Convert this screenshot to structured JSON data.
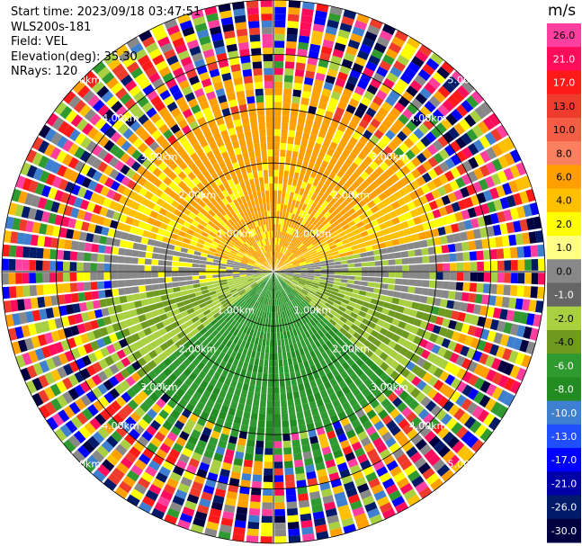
{
  "info": {
    "start_time": "Start time: 2023/09/18 03:47:51",
    "station": "WLS200s-181",
    "field": "Field: VEL",
    "elevation": "Elevation(deg): 35.30",
    "nrays": "NRays: 120"
  },
  "ppi": {
    "n_rays": 120,
    "max_range_km": 5,
    "ring_labels": [
      "1.00km",
      "2.00km",
      "3.00km",
      "4.00km",
      "5.00km"
    ],
    "spoke_angles_deg": [
      0,
      30,
      60,
      90,
      120,
      150,
      180,
      210,
      240,
      270,
      300,
      330
    ]
  },
  "colorbar": {
    "unit": "m/s",
    "ticks": [
      "26.0",
      "21.0",
      "17.0",
      "13.0",
      "10.0",
      "8.0",
      "6.0",
      "4.0",
      "2.0",
      "1.0",
      "0.0",
      "-1.0",
      "-2.0",
      "-4.0",
      "-6.0",
      "-8.0",
      "-10.0",
      "-13.0",
      "-17.0",
      "-21.0",
      "-26.0",
      "-30.0"
    ],
    "colors": [
      "#ff3fa0",
      "#ff0c5c",
      "#ff1a1a",
      "#ee3b2b",
      "#f45c44",
      "#fb8060",
      "#ffa000",
      "#ffc000",
      "#ffff00",
      "#ffff88",
      "#888888",
      "#666666",
      "#a8d040",
      "#6f9a20",
      "#2f9a2f",
      "#228b22",
      "#3f7fd0",
      "#1f4fff",
      "#0000ff",
      "#0000a8",
      "#001a6a",
      "#000040"
    ]
  }
}
